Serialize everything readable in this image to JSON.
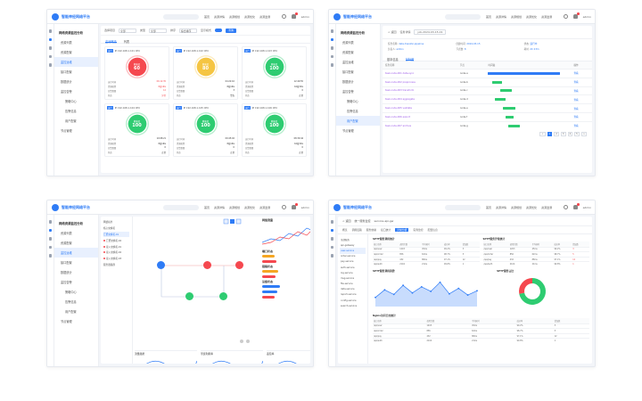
{
  "brand": "智能神经网络平台",
  "topnav": [
    "首页",
    "资源详情",
    "资源规划",
    "资源优化",
    "资源监测"
  ],
  "user": "admin",
  "colors": {
    "accent": "#2f7cf6",
    "good": "#2ecc71",
    "warn": "#f5c542",
    "bad": "#f5484f",
    "purple": "#9b59e8"
  },
  "panel1": {
    "sidebar": {
      "group": "网络资源监控分析",
      "items": [
        "资源列表",
        "资源配置",
        "监控运维",
        "接口配置",
        "数据统计",
        "监控告警",
        "策略中心",
        "告警信息",
        "用户配置",
        "节点管理"
      ],
      "active_index": 2
    },
    "filter": {
      "l1": "选择项目",
      "v1": "全部",
      "l2": "类型",
      "v2": "全部",
      "l3": "排序",
      "v3": "综合排序",
      "l4": "显示模式",
      "btn": "查询"
    },
    "tabs": [
      "监测概览",
      "列表"
    ],
    "active_tab": 0,
    "cards": [
      {
        "tag": "运行",
        "id": "IP 192.168.1.101 CPU",
        "sub": "健康度",
        "val": "60",
        "status": "bad",
        "rows": [
          [
            "运行时间",
            "06:12:35"
          ],
          [
            "资源配置",
            "8核16G"
          ],
          [
            "告警数量",
            "12"
          ],
          [
            "状态",
            "异常"
          ]
        ]
      },
      {
        "tag": "运行",
        "id": "IP 192.168.1.102 CPU",
        "sub": "健康度",
        "val": "80",
        "status": "warn",
        "rows": [
          [
            "运行时间",
            "04:22:10"
          ],
          [
            "资源配置",
            "8核16G"
          ],
          [
            "告警数量",
            "3"
          ],
          [
            "状态",
            "警告"
          ]
        ]
      },
      {
        "tag": "运行",
        "id": "IP 192.168.1.103 CPU",
        "sub": "健康度",
        "val": "100",
        "status": "good",
        "rows": [
          [
            "运行时间",
            "12:40:55"
          ],
          [
            "资源配置",
            "16核32G"
          ],
          [
            "告警数量",
            "0"
          ],
          [
            "状态",
            "正常"
          ]
        ]
      },
      {
        "tag": "运行",
        "id": "IP 192.168.1.104 CPU",
        "sub": "健康度",
        "val": "100",
        "status": "good",
        "rows": [
          [
            "运行时间",
            "10:08:21"
          ],
          [
            "资源配置",
            "8核16G"
          ],
          [
            "告警数量",
            "0"
          ],
          [
            "状态",
            "正常"
          ]
        ]
      },
      {
        "tag": "运行",
        "id": "IP 192.168.1.105 CPU",
        "sub": "健康度",
        "val": "100",
        "status": "good",
        "rows": [
          [
            "运行时间",
            "09:45:02"
          ],
          [
            "资源配置",
            "8核16G"
          ],
          [
            "告警数量",
            "0"
          ],
          [
            "状态",
            "正常"
          ]
        ]
      },
      {
        "tag": "运行",
        "id": "IP 192.168.1.106 CPU",
        "sub": "健康度",
        "val": "100",
        "status": "good",
        "rows": [
          [
            "运行时间",
            "08:30:44"
          ],
          [
            "资源配置",
            "16核32G"
          ],
          [
            "告警数量",
            "0"
          ],
          [
            "状态",
            "正常"
          ]
        ]
      }
    ]
  },
  "panel2": {
    "sidebar": {
      "group": "网络资源监控分析",
      "items": [
        "资源列表",
        "资源配置",
        "监控运维",
        "接口配置",
        "数据统计",
        "监控告警",
        "策略中心",
        "告警信息",
        "用户配置",
        "节点管理"
      ],
      "active_index": 8
    },
    "crumb": [
      "< 返回",
      "任务详情",
      "job-2024-03-15-01"
    ],
    "kv": [
      [
        "任务名称",
        "data-transfer-pipeline"
      ],
      [
        "创建时间",
        "2024-03-15"
      ],
      [
        "状态",
        "运行中"
      ],
      [
        "负责人",
        "admin"
      ],
      [
        "节点数",
        "8"
      ],
      [
        "耗时",
        "4h 23m"
      ]
    ],
    "tabs": [
      "基本信息",
      "甘特图"
    ],
    "active_tab": 1,
    "table": {
      "headers": [
        "任务名称",
        "节点",
        "时间轴",
        "操作"
      ],
      "rows": [
        {
          "name": "task-node-001 data-sync",
          "node": "node-a",
          "start": 0.0,
          "len": 0.9,
          "color": "blue",
          "op": "查看"
        },
        {
          "name": "task-node-002 preprocess",
          "node": "node-b",
          "start": 0.05,
          "len": 0.12,
          "color": "good",
          "op": "查看"
        },
        {
          "name": "task-node-003 transform",
          "node": "node-c",
          "start": 0.15,
          "len": 0.15,
          "color": "good",
          "op": "查看"
        },
        {
          "name": "task-node-004 aggregate",
          "node": "node-d",
          "start": 0.08,
          "len": 0.14,
          "color": "good",
          "op": "查看"
        },
        {
          "name": "task-node-005 validate",
          "node": "node-e",
          "start": 0.18,
          "len": 0.16,
          "color": "good",
          "op": "查看"
        },
        {
          "name": "task-node-006 export",
          "node": "node-f",
          "start": 0.22,
          "len": 0.1,
          "color": "good",
          "op": "查看"
        },
        {
          "name": "task-node-007 archive",
          "node": "node-g",
          "start": 0.25,
          "len": 0.14,
          "color": "good",
          "op": "查看"
        }
      ]
    },
    "pager": [
      "<",
      "1",
      "2",
      "3",
      "4",
      "5",
      ">"
    ],
    "pager_current": 1
  },
  "panel3": {
    "sidebar": {
      "group": "网络资源监控分析",
      "items": [
        "资源列表",
        "资源配置",
        "监控运维",
        "接口配置",
        "数据统计",
        "监控告警",
        "策略中心",
        "告警信息",
        "用户配置",
        "节点管理"
      ],
      "active_index": 2
    },
    "tree": [
      "网络拓扑",
      "核心交换机",
      "汇聚交换机-01",
      "汇聚交换机-02",
      "接入交换机-01",
      "接入交换机-02",
      "接入交换机-03",
      "服务器集群"
    ],
    "stats_title": "网络流量",
    "groups": [
      "端口状态",
      "链路状态",
      "设备状态"
    ],
    "mini_titles": [
      "流量趋势",
      "带宽利用率",
      "丢包率"
    ]
  },
  "panel4": {
    "head": [
      "< 返回",
      "统一服务监控",
      "service-api-gw"
    ],
    "subtabs": [
      "概览",
      "调用链路",
      "服务依赖",
      "接口统计",
      "异常分析",
      "实例监控",
      "配置信息"
    ],
    "active_subtab": 4,
    "list": [
      "全部服务",
      "api-gateway",
      "user-service",
      "order-service",
      "pay-service",
      "auth-service",
      "log-service",
      "msg-service",
      "file-service",
      "data-service",
      "report-service",
      "config-service",
      "search-service"
    ],
    "list_active": 2,
    "box1": "SPTF服务调用统计",
    "box2": "SPTF服务异常统计",
    "box3": "SPTF服务调用趋势",
    "box4": "SPTF服务占比",
    "box5": "Nginx访问日志统计",
    "mtable_headers": [
      "接口名称",
      "调用次数",
      "平均耗时",
      "成功率",
      "错误数"
    ],
    "mtable_rows": [
      [
        "/api/user",
        "1203",
        "45ms",
        "99.2%",
        "3"
      ],
      [
        "/api/order",
        "856",
        "62ms",
        "98.7%",
        "5"
      ],
      [
        "/api/pay",
        "432",
        "88ms",
        "97.1%",
        "12"
      ],
      [
        "/api/auth",
        "2104",
        "21ms",
        "99.8%",
        "1"
      ]
    ],
    "chart_data": {
      "type": "line",
      "x": [
        "00",
        "02",
        "04",
        "06",
        "08",
        "10",
        "12",
        "14",
        "16",
        "18",
        "20",
        "22"
      ],
      "series": [
        {
          "values": [
            30,
            55,
            40,
            70,
            45,
            65,
            50,
            80,
            42,
            60,
            38,
            52
          ]
        }
      ],
      "donut": {
        "values": [
          72,
          28
        ]
      }
    }
  }
}
